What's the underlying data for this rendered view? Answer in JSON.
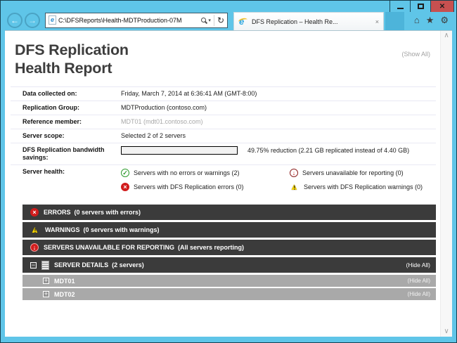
{
  "window": {
    "minimize_label": "minimize",
    "maximize_label": "maximize",
    "close_glyph": "✕"
  },
  "browser": {
    "url": "C:\\DFSReports\\Health-MDTProduction-07M",
    "tab": {
      "title": "DFS Replication – Health Re...",
      "close_glyph": "×"
    },
    "glyphs": {
      "back": "←",
      "forward": "→",
      "caret": "▾",
      "refresh": "↻",
      "home": "⌂",
      "favorites": "★",
      "tools": "⚙",
      "scroll_up": "∧",
      "scroll_down": "∨",
      "favicon_e": "e",
      "page_e": "e"
    }
  },
  "report": {
    "title_line1": "DFS Replication",
    "title_line2": "Health Report",
    "show_all": "(Show All)",
    "info_rows": [
      {
        "label": "Data collected on:",
        "value": "Friday, March 7, 2014 at 6:36:41 AM (GMT-8:00)"
      },
      {
        "label": "Replication Group:",
        "value": "MDTProduction (contoso.com)"
      },
      {
        "label": "Reference member:",
        "value": "MDT01 (mdt01.contoso.com)"
      },
      {
        "label": "Server scope:",
        "value": "Selected 2 of 2 servers"
      }
    ],
    "bandwidth": {
      "label_line1": "DFS Replication bandwidth",
      "label_line2": "savings:",
      "percent": 49.75,
      "summary": "49.75% reduction (2.21 GB replicated instead of 4.40 GB)"
    },
    "server_health": {
      "label": "Server health:",
      "items": [
        {
          "icon": "ok-icon",
          "text": "Servers with no errors or warnings (2)"
        },
        {
          "icon": "unavailable-icon",
          "text": "Servers unavailable for reporting (0)"
        },
        {
          "icon": "error-icon",
          "text": "Servers with DFS Replication errors (0)"
        },
        {
          "icon": "warning-icon",
          "text": "Servers with DFS Replication warnings (0)"
        }
      ]
    },
    "sections": [
      {
        "icon": "error-icon",
        "text": "ERRORS  (0 servers with errors)"
      },
      {
        "icon": "warning-icon",
        "text": "WARNINGS  (0 servers with warnings)"
      },
      {
        "icon": "unavailable-icon",
        "text": "SERVERS UNAVAILABLE FOR REPORTING  (All servers reporting)"
      }
    ],
    "server_details": {
      "text": "SERVER DETAILS  (2 servers)",
      "hide_all": "(Hide All)",
      "servers": [
        {
          "name": "MDT01",
          "hide_all": "(Hide All)"
        },
        {
          "name": "MDT02",
          "hide_all": "(Hide All)"
        }
      ]
    },
    "colors": {
      "chrome_blue": "#5fc5e8",
      "close_red": "#c75050",
      "bar_dark": "#3b3b3b",
      "bar_gray": "#a9a9a9",
      "progress_blue": "#0000d8",
      "ok_green": "#2e9b2e",
      "error_red": "#d11c1c",
      "warning_yellow": "#f5d300"
    }
  }
}
